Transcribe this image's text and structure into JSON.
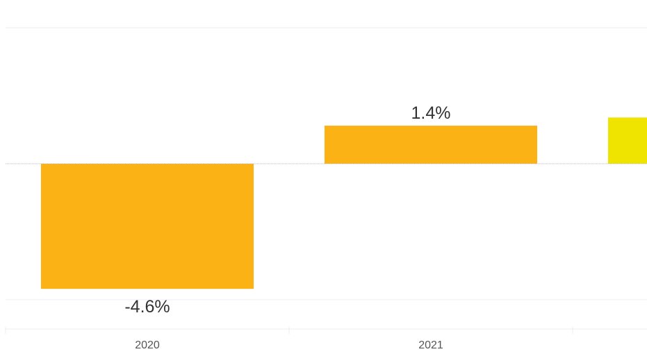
{
  "chart_data": {
    "type": "bar",
    "categories": [
      "2020",
      "2021",
      ""
    ],
    "values": [
      -4.6,
      1.4,
      1.7
    ],
    "data_labels": [
      "-4.6%",
      "1.4%",
      ""
    ],
    "ylim": [
      -6.0,
      5.0
    ],
    "gridlines": [
      5.0,
      -5.0
    ],
    "zero_line": true,
    "grid": true,
    "title": "",
    "xlabel": "",
    "ylabel": "",
    "colors": [
      "#fbb215",
      "#fbb215",
      "#efe300"
    ],
    "colors_meta": {
      "zero_line": "#bbbbbb",
      "grid": "#eeeeee",
      "tick_text": "#555555",
      "label_text": "#333333"
    }
  }
}
